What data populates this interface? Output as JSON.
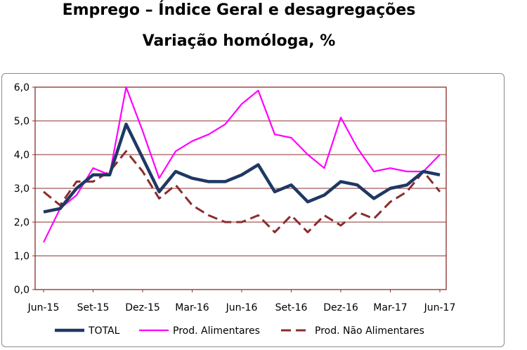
{
  "chart_data": {
    "type": "line",
    "title": "Emprego – Índice Geral e desagregações",
    "subtitle": "Variação homóloga, %",
    "xlabel": "",
    "ylabel": "",
    "ylim": [
      0,
      6
    ],
    "yticks": [
      "0,0",
      "1,0",
      "2,0",
      "3,0",
      "4,0",
      "5,0",
      "6,0"
    ],
    "xtick_labels": [
      "Jun-15",
      "Set-15",
      "Dez-15",
      "Mar-16",
      "Jun-16",
      "Set-16",
      "Dez-16",
      "Mar-17",
      "Jun-17"
    ],
    "categories": [
      "Jun-15",
      "Jul-15",
      "Ago-15",
      "Set-15",
      "Out-15",
      "Nov-15",
      "Dez-15",
      "Jan-16",
      "Fev-16",
      "Mar-16",
      "Abr-16",
      "Mai-16",
      "Jun-16",
      "Jul-16",
      "Ago-16",
      "Set-16",
      "Out-16",
      "Nov-16",
      "Dez-16",
      "Jan-17",
      "Fev-17",
      "Mar-17",
      "Abr-17",
      "Mai-17",
      "Jun-17"
    ],
    "grid": true,
    "legend_position": "bottom",
    "series": [
      {
        "name": "TOTAL",
        "color": "#1f3864",
        "style": "solid-thick",
        "values": [
          2.3,
          2.4,
          3.0,
          3.4,
          3.4,
          4.9,
          3.9,
          2.9,
          3.5,
          3.3,
          3.2,
          3.2,
          3.4,
          3.7,
          2.9,
          3.1,
          2.6,
          2.8,
          3.2,
          3.1,
          2.7,
          3.0,
          3.1,
          3.5,
          3.4
        ]
      },
      {
        "name": "Prod. Alimentares",
        "color": "#ff00ff",
        "style": "solid",
        "values": [
          1.4,
          2.4,
          2.8,
          3.6,
          3.4,
          6.0,
          4.7,
          3.3,
          4.1,
          4.4,
          4.6,
          4.9,
          5.5,
          5.9,
          4.6,
          4.5,
          4.0,
          3.6,
          5.1,
          4.2,
          3.5,
          3.6,
          3.5,
          3.5,
          4.0
        ]
      },
      {
        "name": "Prod. Não Alimentares",
        "color": "#8b2d2d",
        "style": "dashed",
        "values": [
          2.9,
          2.5,
          3.2,
          3.2,
          3.5,
          4.1,
          3.5,
          2.7,
          3.1,
          2.5,
          2.2,
          2.0,
          2.0,
          2.2,
          1.7,
          2.2,
          1.7,
          2.2,
          1.9,
          2.3,
          2.1,
          2.6,
          2.9,
          3.5,
          2.9
        ]
      }
    ]
  }
}
